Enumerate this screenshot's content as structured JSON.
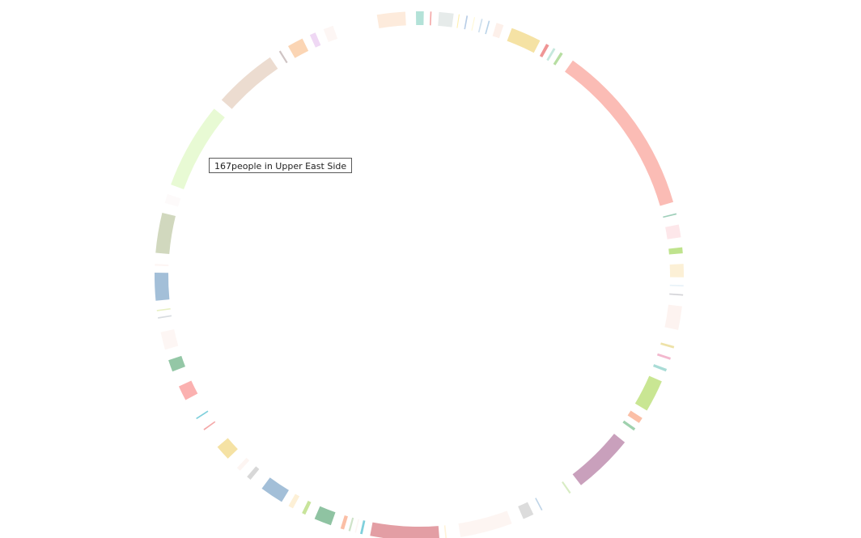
{
  "tooltip": {
    "text": "167people in Upper East Side"
  },
  "chart_data": {
    "type": "chord",
    "angle_unit": "degrees clockwise from 12 o'clock",
    "segments": [
      {
        "start": -9.2,
        "end": -3.0,
        "color": "#fdebdc"
      },
      {
        "start": -0.7,
        "end": 1.0,
        "color": "#b3e2d8"
      },
      {
        "start": 2.4,
        "end": 2.7,
        "color": "#f4a8a8"
      },
      {
        "start": 4.3,
        "end": 7.5,
        "color": "#e6ebea"
      },
      {
        "start": 8.6,
        "end": 8.8,
        "color": "#fff0b0"
      },
      {
        "start": 10.3,
        "end": 10.6,
        "color": "#b8cde6"
      },
      {
        "start": 12.0,
        "end": 12.2,
        "color": "#fff8d6"
      },
      {
        "start": 13.6,
        "end": 13.9,
        "color": "#cfe0ee"
      },
      {
        "start": 15.2,
        "end": 15.5,
        "color": "#b9d3e8"
      },
      {
        "start": 17.0,
        "end": 18.6,
        "color": "#fdf0ea"
      },
      {
        "start": 20.5,
        "end": 27.2,
        "color": "#f5e2a4"
      },
      {
        "start": 28.7,
        "end": 29.4,
        "color": "#ef9595"
      },
      {
        "start": 30.5,
        "end": 31.0,
        "color": "#c6e8dd"
      },
      {
        "start": 32.3,
        "end": 32.9,
        "color": "#b7dea2"
      },
      {
        "start": 35.5,
        "end": 73.8,
        "color": "#fbbcb5"
      },
      {
        "start": 76.3,
        "end": 76.6,
        "color": "#9fcfba"
      },
      {
        "start": 78.8,
        "end": 81.6,
        "color": "#fde7ea"
      },
      {
        "start": 83.8,
        "end": 85.1,
        "color": "#bfe38d"
      },
      {
        "start": 87.4,
        "end": 90.3,
        "color": "#fcf0d6"
      },
      {
        "start": 92.0,
        "end": 92.3,
        "color": "#e8f2f8"
      },
      {
        "start": 94.0,
        "end": 94.3,
        "color": "#d4d4d8"
      },
      {
        "start": 96.6,
        "end": 101.8,
        "color": "#fdf3f0"
      },
      {
        "start": 105.4,
        "end": 105.9,
        "color": "#eee2a8"
      },
      {
        "start": 108.0,
        "end": 108.5,
        "color": "#f3b8ce"
      },
      {
        "start": 110.6,
        "end": 111.2,
        "color": "#a9dcd6"
      },
      {
        "start": 113.5,
        "end": 120.6,
        "color": "#c9e693"
      },
      {
        "start": 122.5,
        "end": 123.8,
        "color": "#fbbfa6"
      },
      {
        "start": 125.2,
        "end": 125.8,
        "color": "#9fd1ae"
      },
      {
        "start": 129.0,
        "end": 142.3,
        "color": "#c9a0bc"
      },
      {
        "start": 145.0,
        "end": 145.4,
        "color": "#d8ecc4"
      },
      {
        "start": 152.2,
        "end": 152.5,
        "color": "#c0d5e8"
      },
      {
        "start": 154.4,
        "end": 156.8,
        "color": "#dcdcdc"
      },
      {
        "start": 159.5,
        "end": 171.0,
        "color": "#fdf5f2"
      },
      {
        "start": 174.0,
        "end": 174.3,
        "color": "#fff3d9"
      },
      {
        "start": 175.6,
        "end": 190.7,
        "color": "#e39ea4"
      },
      {
        "start": 192.4,
        "end": 192.9,
        "color": "#7fd0dc"
      },
      {
        "start": 193.8,
        "end": 194.1,
        "color": "#fdf6f4"
      },
      {
        "start": 195.1,
        "end": 195.5,
        "color": "#cfe3c9"
      },
      {
        "start": 196.5,
        "end": 197.3,
        "color": "#fbbfa6"
      },
      {
        "start": 199.5,
        "end": 203.3,
        "color": "#8fc3a2"
      },
      {
        "start": 205.5,
        "end": 206.3,
        "color": "#c8e49b"
      },
      {
        "start": 208.5,
        "end": 209.6,
        "color": "#fdf0d6"
      },
      {
        "start": 211.3,
        "end": 216.5,
        "color": "#a3bfd8"
      },
      {
        "start": 219.6,
        "end": 220.6,
        "color": "#d8d8d8"
      },
      {
        "start": 222.6,
        "end": 223.5,
        "color": "#fdf5f2"
      },
      {
        "start": 226.3,
        "end": 229.7,
        "color": "#f5e2a4"
      },
      {
        "start": 234.3,
        "end": 234.6,
        "color": "#f4a8a8"
      },
      {
        "start": 237.2,
        "end": 237.5,
        "color": "#7fd0dc"
      },
      {
        "start": 242.0,
        "end": 245.3,
        "color": "#fbb1b0"
      },
      {
        "start": 248.8,
        "end": 251.4,
        "color": "#94c7a6"
      },
      {
        "start": 253.8,
        "end": 257.7,
        "color": "#fdf6f4"
      },
      {
        "start": 260.7,
        "end": 261.0,
        "color": "#d8dce0"
      },
      {
        "start": 262.3,
        "end": 262.6,
        "color": "#e8f0c4"
      },
      {
        "start": 264.6,
        "end": 270.7,
        "color": "#a3bfd8"
      },
      {
        "start": 272.2,
        "end": 272.6,
        "color": "#fdf6f4"
      },
      {
        "start": 275.0,
        "end": 283.8,
        "color": "#d1d8be"
      },
      {
        "start": 286.0,
        "end": 288.0,
        "color": "#fdfafa"
      },
      {
        "start": 290.2,
        "end": 309.2,
        "color": "#e8fad4"
      },
      {
        "start": 311.7,
        "end": 325.7,
        "color": "#ecdcd0"
      },
      {
        "start": 328.0,
        "end": 328.4,
        "color": "#cfc4c4"
      },
      {
        "start": 330.3,
        "end": 333.8,
        "color": "#fbd5b4"
      },
      {
        "start": 335.6,
        "end": 336.9,
        "color": "#efd8f4"
      },
      {
        "start": 338.8,
        "end": 341.0,
        "color": "#fdf6f4"
      }
    ]
  }
}
